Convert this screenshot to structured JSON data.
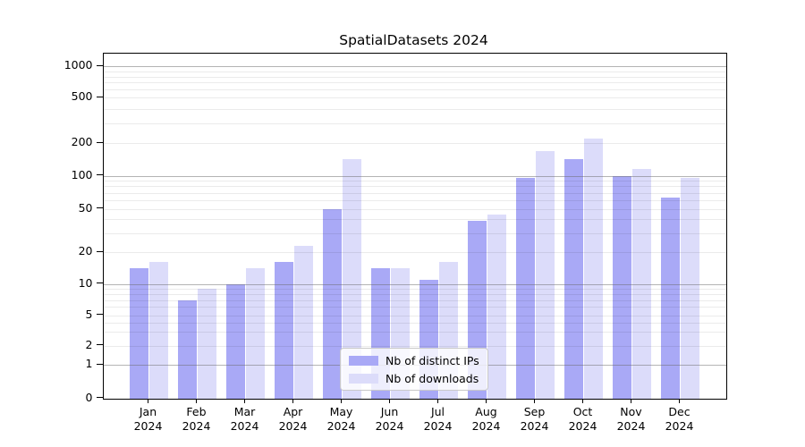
{
  "title": "SpatialDatasets 2024",
  "legend": {
    "items": [
      {
        "label": "Nb of distinct IPs",
        "color": "#a9a9f6"
      },
      {
        "label": "Nb of downloads",
        "color": "#dcdcfa"
      }
    ]
  },
  "y_axis": {
    "tick_values": [
      0,
      1,
      2,
      5,
      10,
      20,
      50,
      100,
      200,
      500,
      1000
    ],
    "tick_labels": [
      "0",
      "1",
      "2",
      "5",
      "10",
      "20",
      "50",
      "100",
      "200",
      "500",
      "1000"
    ]
  },
  "x_axis": {
    "tick_labels_line1": [
      "Jan",
      "Feb",
      "Mar",
      "Apr",
      "May",
      "Jun",
      "Jul",
      "Aug",
      "Sep",
      "Oct",
      "Nov",
      "Dec"
    ],
    "tick_labels_line2": [
      "2024",
      "2024",
      "2024",
      "2024",
      "2024",
      "2024",
      "2024",
      "2024",
      "2024",
      "2024",
      "2024",
      "2024"
    ]
  },
  "colors": {
    "bar_distinct_ips": "#a9a9f6",
    "bar_downloads": "#dcdcfa",
    "grid_major": "rgba(105,105,105,0.5)",
    "grid_minor": "rgba(0,0,0,0.08)",
    "spine": "#000000"
  },
  "chart_data": {
    "type": "bar",
    "title": "SpatialDatasets 2024",
    "categories": [
      "Jan 2024",
      "Feb 2024",
      "Mar 2024",
      "Apr 2024",
      "May 2024",
      "Jun 2024",
      "Jul 2024",
      "Aug 2024",
      "Sep 2024",
      "Oct 2024",
      "Nov 2024",
      "Dec 2024"
    ],
    "series": [
      {
        "name": "Nb of distinct IPs",
        "color": "#a9a9f6",
        "values": [
          14,
          7,
          10,
          16,
          50,
          14,
          11,
          39,
          95,
          142,
          100,
          63
        ]
      },
      {
        "name": "Nb of downloads",
        "color": "#dcdcfa",
        "values": [
          16,
          9,
          14,
          23,
          142,
          14,
          16,
          44,
          168,
          220,
          115,
          95
        ]
      }
    ],
    "xlabel": "",
    "ylabel": "",
    "yscale": "symlog-like (linear 0-1, quasi-log above)",
    "ylim": [
      0,
      1300
    ],
    "y_ticks": [
      0,
      1,
      2,
      5,
      10,
      20,
      50,
      100,
      200,
      500,
      1000
    ],
    "grid": "on (major dark gray at 1,10,100,1000; minor light at 2-9 per decade)",
    "legend_position": "lower center"
  }
}
